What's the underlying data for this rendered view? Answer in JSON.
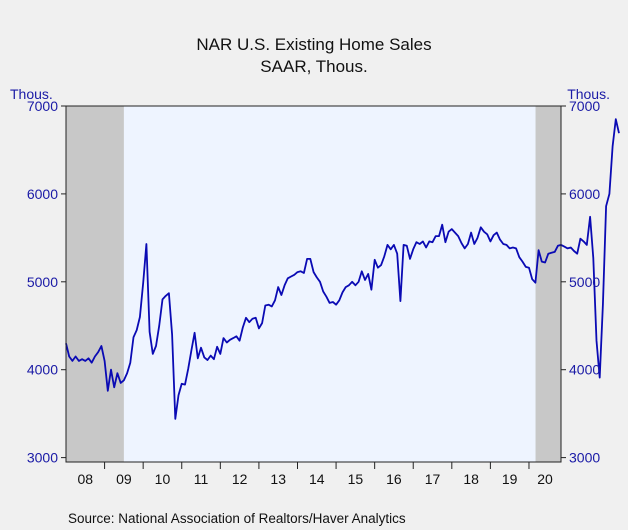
{
  "chart_data": {
    "type": "line",
    "title": "NAR U.S. Existing Home Sales",
    "subtitle": "SAAR, Thous.",
    "ylabel_left": "Thous.",
    "ylabel_right": "Thous.",
    "source": "Source:  National Association of Realtors/Haver Analytics",
    "ylim": [
      2950,
      7000
    ],
    "y_ticks": [
      3000,
      4000,
      5000,
      6000,
      7000
    ],
    "x_range": [
      2008.0,
      2020.83
    ],
    "x_tick_labels": [
      {
        "year": 2008,
        "label": "08"
      },
      {
        "year": 2009,
        "label": "09"
      },
      {
        "year": 2010,
        "label": "10"
      },
      {
        "year": 2011,
        "label": "11"
      },
      {
        "year": 2012,
        "label": "12"
      },
      {
        "year": 2013,
        "label": "13"
      },
      {
        "year": 2014,
        "label": "14"
      },
      {
        "year": 2015,
        "label": "15"
      },
      {
        "year": 2016,
        "label": "16"
      },
      {
        "year": 2017,
        "label": "17"
      },
      {
        "year": 2018,
        "label": "18"
      },
      {
        "year": 2019,
        "label": "19"
      },
      {
        "year": 2020,
        "label": "20"
      }
    ],
    "recession_bands": [
      {
        "start": 2008.0,
        "end": 2009.5
      },
      {
        "start": 2020.17,
        "end": 2020.83
      }
    ],
    "series": [
      {
        "color": "#0a0ab4",
        "x_start": 2008.0,
        "x_step_months": 1,
        "values": [
          4300,
          4150,
          4100,
          4150,
          4100,
          4120,
          4100,
          4130,
          4080,
          4150,
          4200,
          4270,
          4100,
          3760,
          4000,
          3800,
          3960,
          3850,
          3880,
          3960,
          4080,
          4370,
          4450,
          4600,
          4990,
          5430,
          4430,
          4180,
          4270,
          4500,
          4800,
          4840,
          4870,
          4400,
          3440,
          3710,
          3840,
          3830,
          4010,
          4220,
          4420,
          4130,
          4250,
          4140,
          4110,
          4160,
          4120,
          4260,
          4180,
          4360,
          4310,
          4340,
          4360,
          4380,
          4330,
          4480,
          4590,
          4540,
          4580,
          4590,
          4470,
          4530,
          4730,
          4740,
          4720,
          4790,
          4940,
          4850,
          4960,
          5040,
          5060,
          5080,
          5110,
          5120,
          5100,
          5260,
          5260,
          5110,
          5050,
          5000,
          4890,
          4830,
          4760,
          4770,
          4740,
          4790,
          4880,
          4940,
          4960,
          5000,
          4960,
          5000,
          5120,
          5020,
          5090,
          4910,
          5250,
          5160,
          5190,
          5290,
          5420,
          5370,
          5420,
          5320,
          4780,
          5420,
          5410,
          5260,
          5370,
          5450,
          5430,
          5460,
          5390,
          5460,
          5450,
          5520,
          5520,
          5650,
          5450,
          5570,
          5600,
          5560,
          5520,
          5440,
          5380,
          5430,
          5560,
          5430,
          5500,
          5620,
          5570,
          5540,
          5460,
          5530,
          5560,
          5480,
          5430,
          5420,
          5380,
          5390,
          5380,
          5280,
          5230,
          5170,
          5160,
          5030,
          4990,
          5360,
          5230,
          5220,
          5320,
          5330,
          5340,
          5410,
          5420,
          5400,
          5380,
          5390,
          5350,
          5320,
          5490,
          5460,
          5420,
          5740,
          5270,
          4330,
          3910,
          4740,
          5860,
          6000,
          6540,
          6850,
          6690
        ]
      }
    ]
  }
}
